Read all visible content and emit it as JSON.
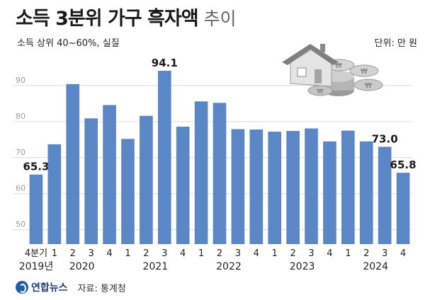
{
  "header": {
    "title_main": "소득 3분위 가구 흑자액",
    "title_sub": "추이",
    "subtitle": "소득 상위 40~60%, 실질",
    "unit": "단위: 만 원"
  },
  "footer": {
    "logo": "연합뉴스",
    "source": "자료: 통계청"
  },
  "colors": {
    "bar": "#5b87c7",
    "grid": "#d9d9d9",
    "axis_text": "#9a9a9a"
  },
  "chart_data": {
    "type": "bar",
    "categories": [
      "4분기",
      "1",
      "2",
      "3",
      "4",
      "1",
      "2",
      "3",
      "4",
      "1",
      "2",
      "3",
      "4",
      "1",
      "2",
      "3",
      "4",
      "1",
      "2",
      "3",
      "4"
    ],
    "years": [
      {
        "label": "2019년",
        "at": 0
      },
      {
        "label": "2020",
        "at": 2.5
      },
      {
        "label": "2021",
        "at": 6.5
      },
      {
        "label": "2022",
        "at": 10.5
      },
      {
        "label": "2023",
        "at": 14.5
      },
      {
        "label": "2024",
        "at": 18.5
      }
    ],
    "values": [
      65.3,
      73.7,
      90.4,
      80.9,
      84.6,
      75.2,
      81.6,
      94.1,
      78.6,
      85.6,
      85.2,
      77.9,
      77.8,
      77.2,
      77.4,
      78.1,
      74.5,
      77.5,
      74.5,
      73.0,
      65.8
    ],
    "data_labels": {
      "0": "65.3",
      "7": "94.1",
      "19": "73.0",
      "20": "65.8"
    },
    "y_ticks": [
      50,
      60,
      70,
      80,
      90
    ],
    "ylim": [
      46,
      100
    ],
    "grid": true
  }
}
